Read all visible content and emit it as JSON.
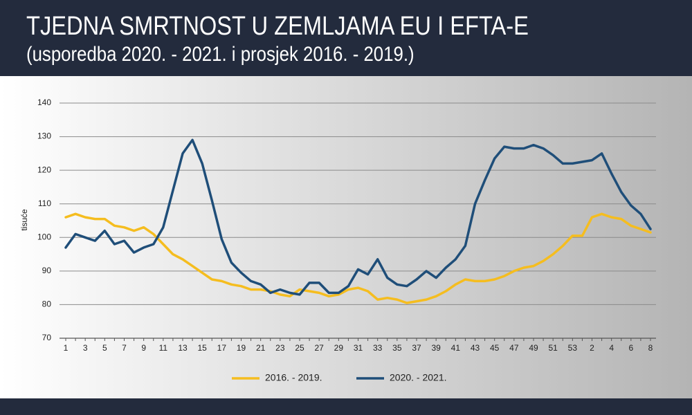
{
  "chart_data": {
    "type": "line",
    "title": "TJEDNA SMRTNOST U ZEMLJAMA EU I EFTA-E",
    "subtitle": "(usporedba 2020. - 2021. i prosjek 2016. - 2019.)",
    "ylabel": "tisuće",
    "categories": [
      "1",
      null,
      "3",
      null,
      "5",
      null,
      "7",
      null,
      "9",
      null,
      "11",
      null,
      "13",
      null,
      "15",
      null,
      "17",
      null,
      "19",
      null,
      "21",
      null,
      "23",
      null,
      "25",
      null,
      "27",
      null,
      "29",
      null,
      "31",
      null,
      "33",
      null,
      "35",
      null,
      "37",
      null,
      "39",
      null,
      "41",
      null,
      "43",
      null,
      "45",
      null,
      "47",
      null,
      "49",
      null,
      "51",
      null,
      "53",
      null,
      "2",
      null,
      "4",
      null,
      "6",
      null,
      "8"
    ],
    "series": [
      {
        "name": "2016. - 2019.",
        "color": "#f5bd1f",
        "values": [
          106,
          107,
          106,
          105.5,
          105.5,
          103.5,
          103,
          102,
          103,
          101,
          98,
          95,
          93.5,
          91.5,
          89.5,
          87.5,
          87,
          86,
          85.5,
          84.5,
          84.5,
          84,
          83,
          82.5,
          84.5,
          84,
          83.5,
          82.5,
          83,
          84.5,
          85,
          84,
          81.5,
          82,
          81.5,
          80.5,
          81,
          81.5,
          82.5,
          84,
          86,
          87.5,
          87,
          87,
          87.5,
          88.5,
          90,
          91,
          91.5,
          93,
          95,
          97.5,
          100.5,
          100.5,
          106,
          107,
          106,
          105.5,
          103.5,
          102.5,
          101.5
        ]
      },
      {
        "name": "2020. - 2021.",
        "color": "#1f4e79",
        "values": [
          97,
          101,
          100,
          99,
          102,
          98,
          99,
          95.5,
          97,
          98,
          103,
          114,
          125,
          129,
          122,
          111,
          99.5,
          92.5,
          89.5,
          87,
          86,
          83.5,
          84.5,
          83.5,
          83,
          86.5,
          86.5,
          83.5,
          83.5,
          85.5,
          90.5,
          89,
          93.5,
          88,
          86,
          85.5,
          87.5,
          90,
          88,
          91,
          93.5,
          97.5,
          110,
          117,
          123.5,
          127,
          126.5,
          126.5,
          127.5,
          126.5,
          124.5,
          122,
          122,
          122.5,
          123,
          125,
          119,
          113.5,
          109.5,
          107,
          102.5
        ]
      }
    ],
    "ylim": [
      70,
      140
    ],
    "yticks": [
      70,
      80,
      90,
      100,
      110,
      120,
      130,
      140
    ],
    "grid": true,
    "legend": "bottom"
  }
}
